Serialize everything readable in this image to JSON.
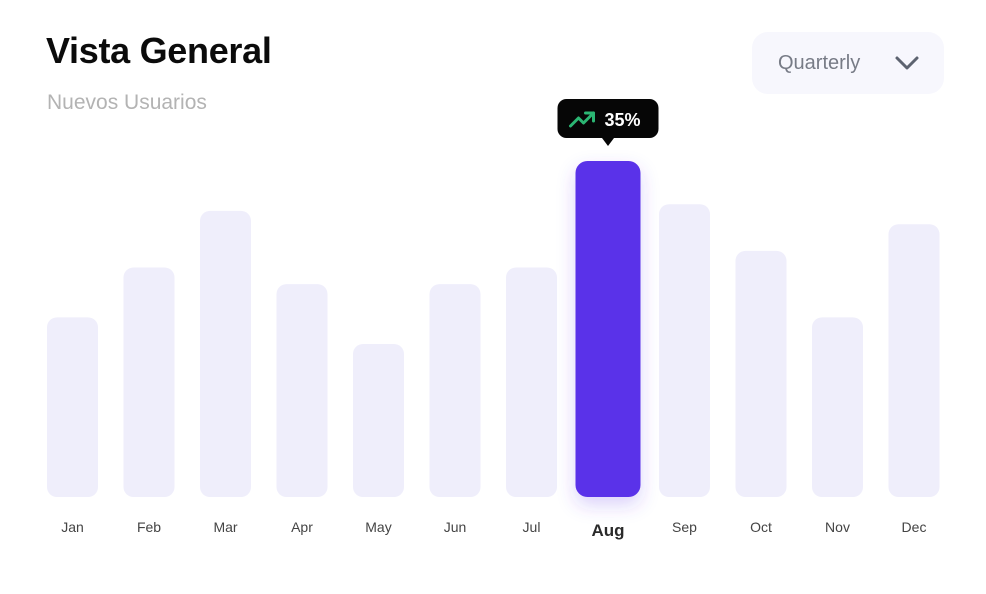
{
  "header": {
    "title": "Vista General",
    "subtitle": "Nuevos Usuarios"
  },
  "period_select": {
    "value": "Quarterly",
    "icon": "chevron-down-icon"
  },
  "colors": {
    "bar": "#efeefb",
    "highlight": "#5a30e9",
    "tooltip_bg": "#060606",
    "trend": "#2bb673"
  },
  "chart_data": {
    "type": "bar",
    "categories": [
      "Jan",
      "Feb",
      "Mar",
      "Apr",
      "May",
      "Jun",
      "Jul",
      "Aug",
      "Sep",
      "Oct",
      "Nov",
      "Dec"
    ],
    "values": [
      54,
      69,
      86,
      64,
      46,
      64,
      69,
      101,
      88,
      74,
      54,
      82
    ],
    "ylim": [
      0,
      101
    ],
    "highlighted": "Aug",
    "tooltip": {
      "category": "Aug",
      "text": "35%",
      "icon": "trending-up-icon"
    },
    "grid": false,
    "legend": "none"
  }
}
